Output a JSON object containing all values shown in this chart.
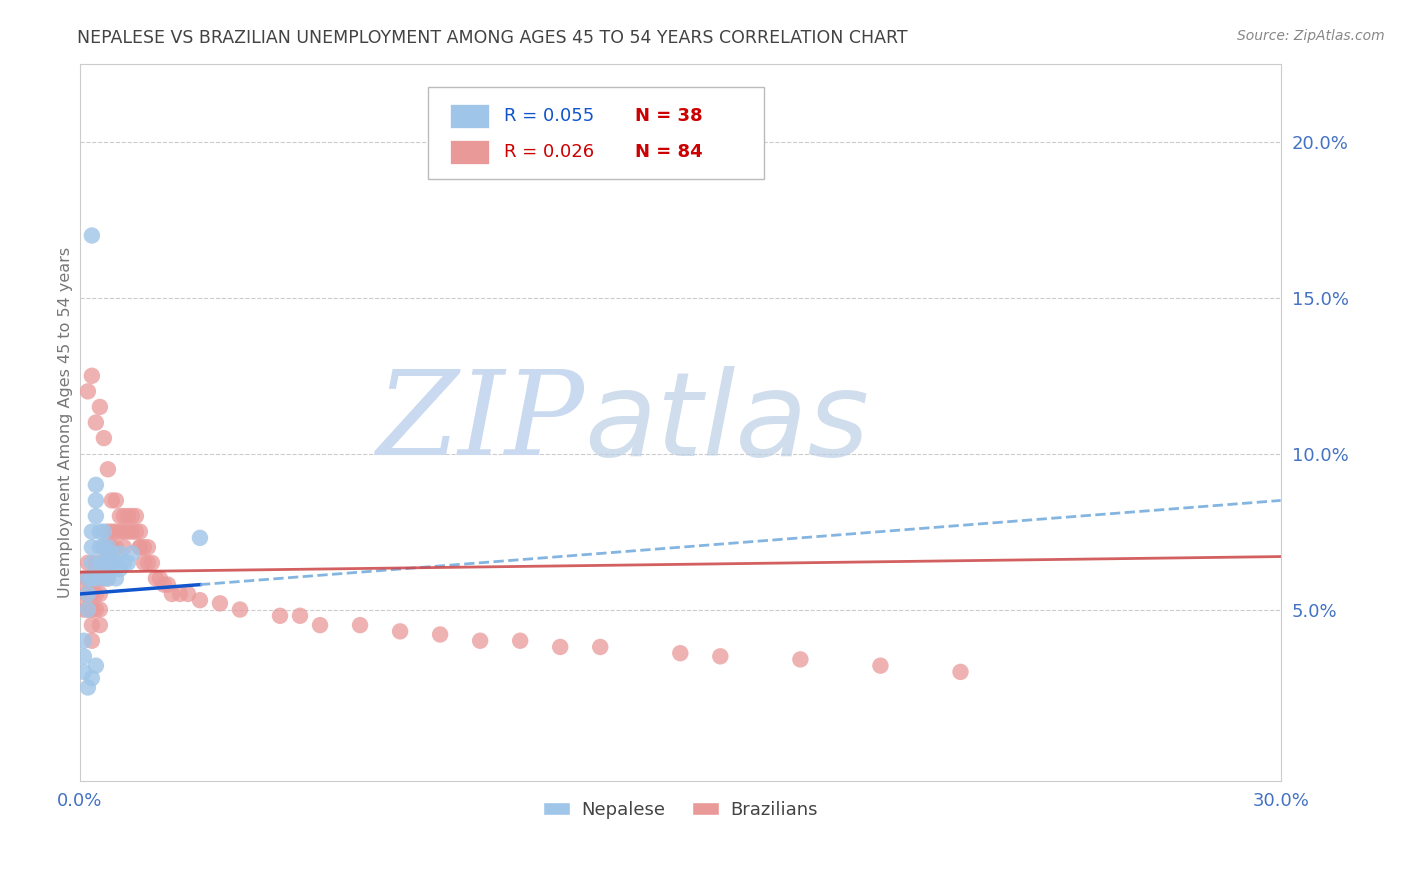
{
  "title": "NEPALESE VS BRAZILIAN UNEMPLOYMENT AMONG AGES 45 TO 54 YEARS CORRELATION CHART",
  "source": "Source: ZipAtlas.com",
  "ylabel": "Unemployment Among Ages 45 to 54 years",
  "xlim": [
    0.0,
    0.3
  ],
  "ylim": [
    -0.005,
    0.225
  ],
  "xtick_positions": [
    0.0,
    0.05,
    0.1,
    0.15,
    0.2,
    0.25,
    0.3
  ],
  "xtick_labels": [
    "0.0%",
    "",
    "",
    "",
    "",
    "",
    "30.0%"
  ],
  "ytick_positions": [
    0.05,
    0.1,
    0.15,
    0.2
  ],
  "ytick_labels": [
    "5.0%",
    "10.0%",
    "15.0%",
    "20.0%"
  ],
  "nepalese_color": "#9fc5e8",
  "nepalese_edge": "#6fa8dc",
  "brazilian_color": "#ea9999",
  "brazilian_edge": "#e06666",
  "trend_blue_solid": "#1155cc",
  "trend_blue_dash": "#6fa8dc",
  "trend_pink": "#cc4444",
  "grid_color": "#cccccc",
  "r1_color": "#1155cc",
  "n1_color": "#cc0000",
  "r2_color": "#cc0000",
  "n2_color": "#cc0000",
  "axis_color": "#4472c4",
  "title_color": "#434343",
  "source_color": "#888888",
  "ylabel_color": "#777777",
  "nepalese_x": [
    0.001,
    0.001,
    0.002,
    0.002,
    0.002,
    0.003,
    0.003,
    0.003,
    0.003,
    0.003,
    0.004,
    0.004,
    0.004,
    0.004,
    0.005,
    0.005,
    0.005,
    0.006,
    0.006,
    0.006,
    0.006,
    0.007,
    0.007,
    0.007,
    0.008,
    0.008,
    0.009,
    0.009,
    0.01,
    0.01,
    0.011,
    0.012,
    0.013,
    0.03,
    0.001,
    0.002,
    0.003,
    0.004
  ],
  "nepalese_y": [
    0.04,
    0.035,
    0.06,
    0.055,
    0.05,
    0.17,
    0.075,
    0.07,
    0.065,
    0.06,
    0.09,
    0.085,
    0.08,
    0.06,
    0.075,
    0.07,
    0.065,
    0.075,
    0.07,
    0.065,
    0.06,
    0.07,
    0.065,
    0.06,
    0.068,
    0.063,
    0.065,
    0.06,
    0.068,
    0.063,
    0.065,
    0.065,
    0.068,
    0.073,
    0.03,
    0.025,
    0.028,
    0.032
  ],
  "brazilian_x": [
    0.001,
    0.001,
    0.001,
    0.002,
    0.002,
    0.002,
    0.002,
    0.003,
    0.003,
    0.003,
    0.003,
    0.003,
    0.004,
    0.004,
    0.004,
    0.004,
    0.005,
    0.005,
    0.005,
    0.005,
    0.006,
    0.006,
    0.006,
    0.007,
    0.007,
    0.007,
    0.007,
    0.008,
    0.008,
    0.008,
    0.009,
    0.009,
    0.01,
    0.01,
    0.011,
    0.011,
    0.011,
    0.012,
    0.012,
    0.013,
    0.013,
    0.014,
    0.014,
    0.015,
    0.015,
    0.015,
    0.016,
    0.016,
    0.017,
    0.017,
    0.018,
    0.019,
    0.02,
    0.021,
    0.022,
    0.023,
    0.025,
    0.027,
    0.03,
    0.035,
    0.04,
    0.05,
    0.055,
    0.06,
    0.07,
    0.08,
    0.09,
    0.1,
    0.11,
    0.12,
    0.13,
    0.15,
    0.16,
    0.18,
    0.2,
    0.22,
    0.002,
    0.003,
    0.004,
    0.005,
    0.006,
    0.007,
    0.008,
    0.009
  ],
  "brazilian_y": [
    0.06,
    0.055,
    0.05,
    0.065,
    0.06,
    0.055,
    0.05,
    0.06,
    0.055,
    0.05,
    0.045,
    0.04,
    0.065,
    0.06,
    0.055,
    0.05,
    0.06,
    0.055,
    0.05,
    0.045,
    0.07,
    0.065,
    0.06,
    0.075,
    0.07,
    0.065,
    0.06,
    0.075,
    0.07,
    0.065,
    0.075,
    0.07,
    0.08,
    0.075,
    0.08,
    0.075,
    0.07,
    0.08,
    0.075,
    0.08,
    0.075,
    0.08,
    0.075,
    0.07,
    0.075,
    0.07,
    0.07,
    0.065,
    0.07,
    0.065,
    0.065,
    0.06,
    0.06,
    0.058,
    0.058,
    0.055,
    0.055,
    0.055,
    0.053,
    0.052,
    0.05,
    0.048,
    0.048,
    0.045,
    0.045,
    0.043,
    0.042,
    0.04,
    0.04,
    0.038,
    0.038,
    0.036,
    0.035,
    0.034,
    0.032,
    0.03,
    0.12,
    0.125,
    0.11,
    0.115,
    0.105,
    0.095,
    0.085,
    0.085
  ]
}
